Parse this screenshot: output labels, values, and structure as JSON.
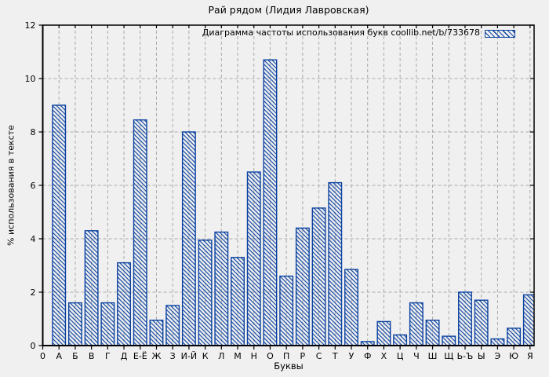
{
  "chart_data": {
    "type": "bar",
    "title": "Рай рядом (Лидия Лавровская)",
    "legend": "Диаграмма частоты использования букв coollib.net/b/733678",
    "legend_position": "top-right-inside",
    "xlabel": "Буквы",
    "ylabel": "% использования в тексте",
    "ylim": [
      0,
      12
    ],
    "yticks": [
      0,
      2,
      4,
      6,
      8,
      10,
      12
    ],
    "grid": true,
    "bar_style": "hatched-diagonal",
    "colors": {
      "bar": "#0a41a0",
      "background": "#f0f0f0",
      "grid": "#aaaaaa",
      "axis": "#000000",
      "text": "#000000"
    },
    "categories": [
      "0",
      "А",
      "Б",
      "В",
      "Г",
      "Д",
      "Е-Ё",
      "Ж",
      "З",
      "И-Й",
      "К",
      "Л",
      "М",
      "Н",
      "О",
      "П",
      "Р",
      "С",
      "Т",
      "У",
      "Ф",
      "Х",
      "Ц",
      "Ч",
      "Ш",
      "Щ",
      "Ь-Ъ",
      "Ы",
      "Э",
      "Ю",
      "Я"
    ],
    "values": [
      null,
      9.0,
      1.6,
      4.3,
      1.6,
      3.1,
      8.45,
      0.95,
      1.5,
      8.0,
      3.95,
      4.25,
      3.3,
      6.5,
      10.7,
      2.6,
      4.4,
      5.15,
      6.1,
      2.85,
      0.15,
      0.9,
      0.4,
      1.6,
      0.95,
      0.35,
      2.0,
      1.7,
      0.25,
      0.65,
      1.9
    ]
  }
}
